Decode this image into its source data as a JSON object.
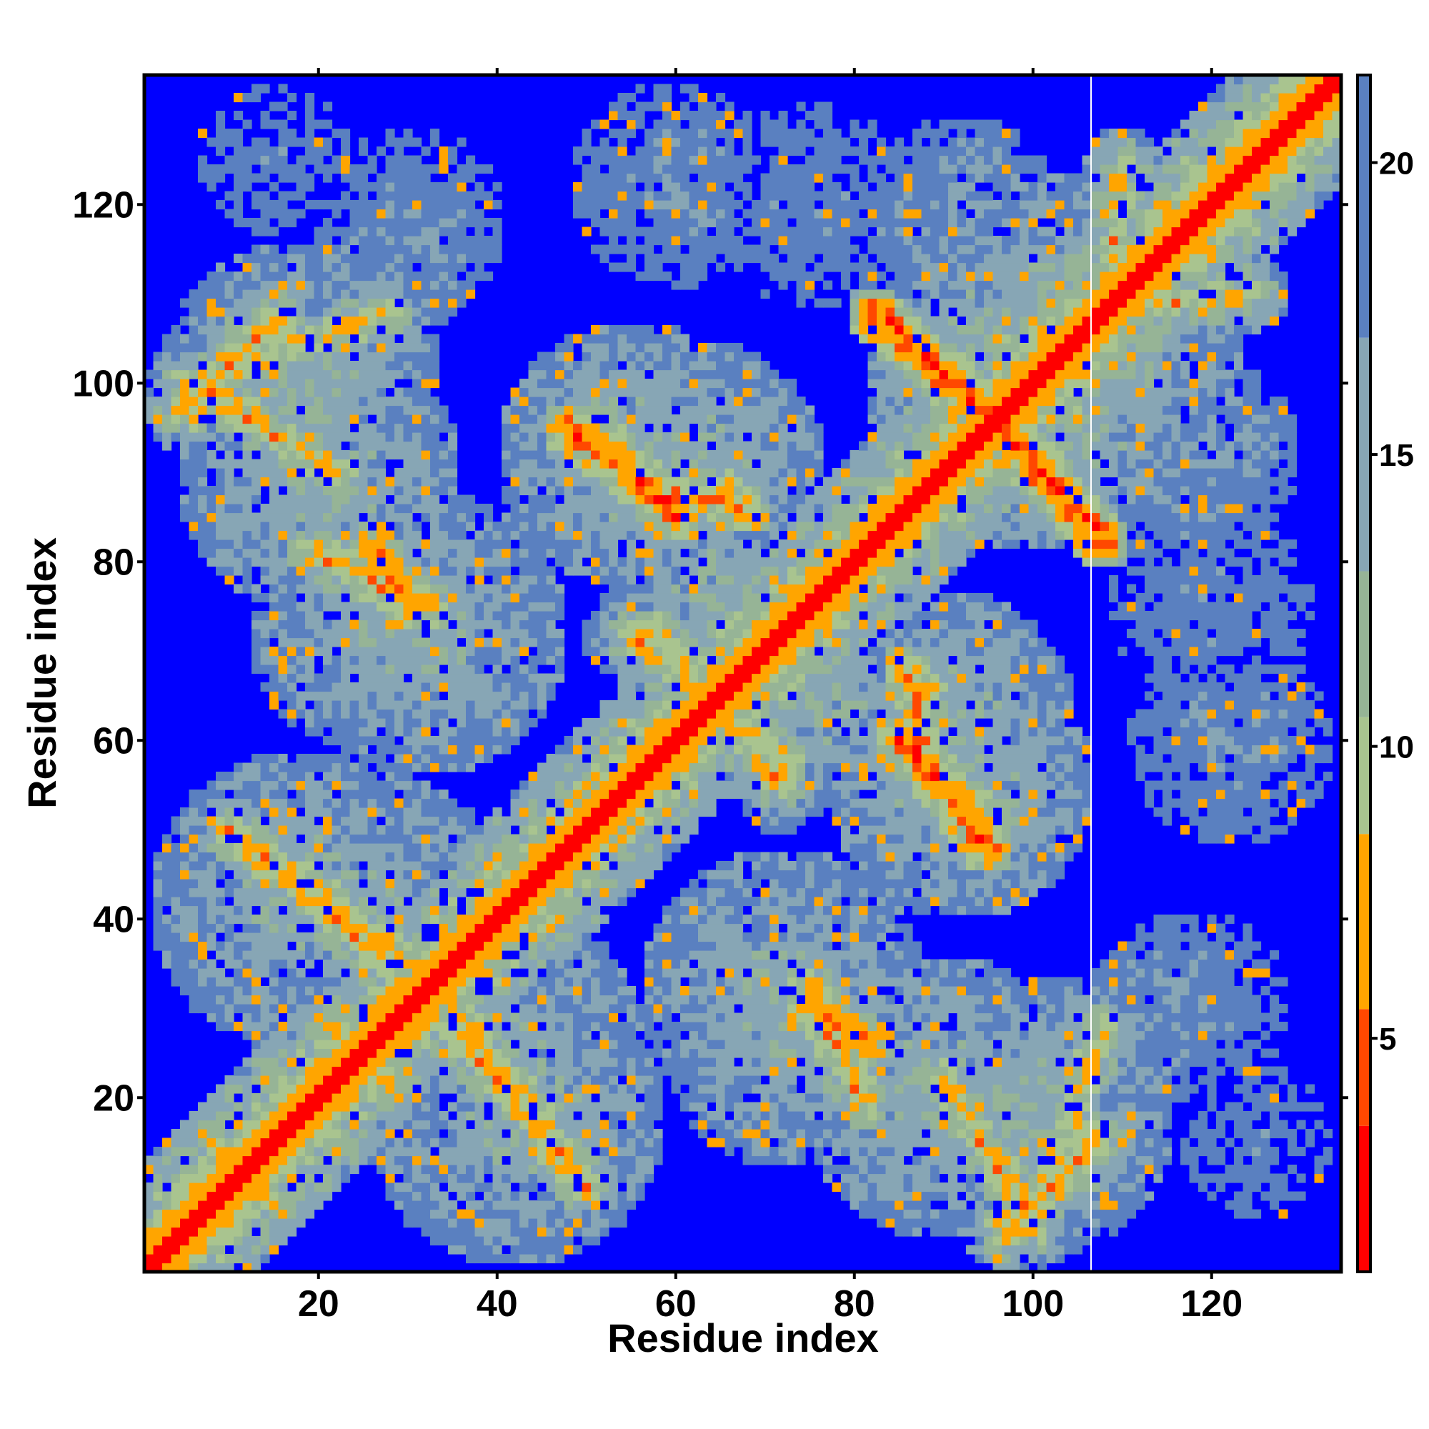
{
  "chart_data": {
    "type": "heatmap",
    "title": "",
    "xlabel": "Residue index",
    "ylabel": "Residue index",
    "xlim": [
      1,
      134
    ],
    "ylim": [
      1,
      134
    ],
    "n_residues": 134,
    "grid": false,
    "x_ticks": [
      20,
      40,
      60,
      80,
      100,
      120
    ],
    "x_tick_labels": [
      "20",
      "40",
      "60",
      "80",
      "100",
      "120"
    ],
    "y_ticks": [
      20,
      40,
      60,
      80,
      100,
      120
    ],
    "y_tick_labels": [
      "20",
      "40",
      "60",
      "80",
      "100",
      "120"
    ],
    "colorbar": {
      "range": [
        1,
        21.5
      ],
      "ticks": [
        5,
        10,
        15,
        20
      ],
      "tick_labels": [
        "5",
        "10",
        "15",
        "20"
      ],
      "bands": [
        {
          "from": 1,
          "to": 3.5,
          "color": "#ff0000"
        },
        {
          "from": 3.5,
          "to": 5.5,
          "color": "#ff4800"
        },
        {
          "from": 5.5,
          "to": 8.5,
          "color": "#ffa500"
        },
        {
          "from": 8.5,
          "to": 10.5,
          "color": "#a9c48f"
        },
        {
          "from": 10.5,
          "to": 13,
          "color": "#96b496"
        },
        {
          "from": 13,
          "to": 17,
          "color": "#87a6b5"
        },
        {
          "from": 17,
          "to": 21.5,
          "color": "#5a80c0"
        }
      ],
      "background_color": "#0000ff",
      "background_threshold": 21.5
    },
    "separator_x": 106.5,
    "contact_lines": [
      {
        "from": [
          5,
          97
        ],
        "to": [
          15,
          107
        ],
        "d": 6.5,
        "width": 5
      },
      {
        "from": [
          20,
          81
        ],
        "to": [
          32,
          75
        ],
        "d": 6.5,
        "width": 4
      },
      {
        "from": [
          10,
          50
        ],
        "to": [
          30,
          35
        ],
        "d": 7,
        "width": 6
      },
      {
        "from": [
          35,
          28
        ],
        "to": [
          50,
          10
        ],
        "d": 7,
        "width": 6
      },
      {
        "from": [
          50,
          95
        ],
        "to": [
          60,
          85
        ],
        "d": 5.5,
        "width": 4
      },
      {
        "from": [
          60,
          88
        ],
        "to": [
          68,
          86
        ],
        "d": 6.5,
        "width": 3
      },
      {
        "from": [
          82,
          108
        ],
        "to": [
          95,
          96
        ],
        "d": 4,
        "width": 3
      },
      {
        "from": [
          96,
          96
        ],
        "to": [
          108,
          82
        ],
        "d": 4,
        "width": 3
      },
      {
        "from": [
          86,
          60
        ],
        "to": [
          95,
          48
        ],
        "d": 5,
        "width": 3
      },
      {
        "from": [
          88,
          65
        ],
        "to": [
          86,
          58
        ],
        "d": 6.5,
        "width": 3
      },
      {
        "from": [
          75,
          30
        ],
        "to": [
          82,
          26
        ],
        "d": 5.5,
        "width": 3
      },
      {
        "from": [
          90,
          22
        ],
        "to": [
          100,
          6
        ],
        "d": 7,
        "width": 6
      },
      {
        "from": [
          55,
          72
        ],
        "to": [
          72,
          58
        ],
        "d": 7.5,
        "width": 7
      },
      {
        "from": [
          100,
          5
        ],
        "to": [
          108,
          28
        ],
        "d": 8,
        "width": 4
      },
      {
        "from": [
          107,
          108
        ],
        "to": [
          125,
          110
        ],
        "d": 8,
        "width": 4
      }
    ],
    "contact_regions": [
      {
        "center": [
          18,
          100
        ],
        "r": 16,
        "d": 13
      },
      {
        "center": [
          25,
          72
        ],
        "r": 13,
        "d": 14
      },
      {
        "center": [
          18,
          42
        ],
        "r": 17,
        "d": 13
      },
      {
        "center": [
          40,
          25
        ],
        "r": 17,
        "d": 13
      },
      {
        "center": [
          55,
          92
        ],
        "r": 15,
        "d": 13
      },
      {
        "center": [
          60,
          122
        ],
        "r": 12,
        "d": 17
      },
      {
        "center": [
          30,
          118
        ],
        "r": 11,
        "d": 18
      },
      {
        "center": [
          68,
          72
        ],
        "r": 15,
        "d": 12
      },
      {
        "center": [
          72,
          32
        ],
        "r": 16,
        "d": 13
      },
      {
        "center": [
          90,
          62
        ],
        "r": 15,
        "d": 13
      },
      {
        "center": [
          95,
          100
        ],
        "r": 14,
        "d": 12
      },
      {
        "center": [
          90,
          20
        ],
        "r": 16,
        "d": 13
      },
      {
        "center": [
          110,
          100
        ],
        "r": 14,
        "d": 14
      },
      {
        "center": [
          92,
          118
        ],
        "r": 12,
        "d": 16
      },
      {
        "center": [
          120,
          75
        ],
        "r": 14,
        "d": 18
      },
      {
        "center": [
          115,
          30
        ],
        "r": 9,
        "d": 17
      },
      {
        "center": [
          125,
          15
        ],
        "r": 10,
        "d": 19
      }
    ]
  }
}
